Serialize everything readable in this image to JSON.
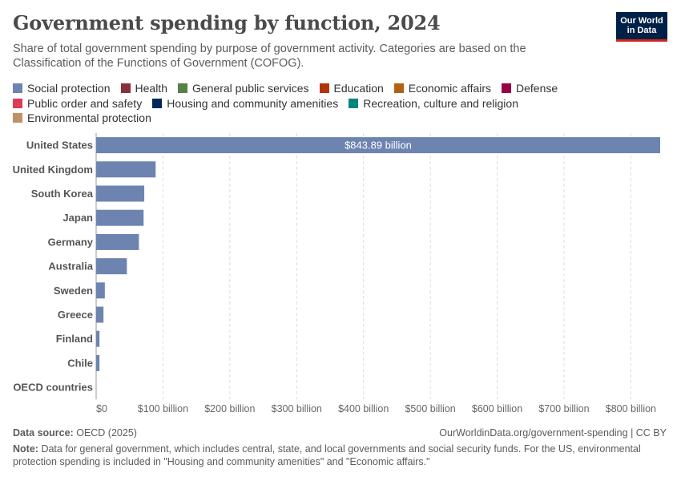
{
  "header": {
    "title": "Government spending by function, 2024",
    "subtitle": "Share of total government spending by purpose of government activity. Categories are based on the Classification of the Functions of Government (COFOG).",
    "logo_line1": "Our World",
    "logo_line2": "in Data"
  },
  "legend": [
    {
      "label": "Social protection",
      "color": "#6d84b0"
    },
    {
      "label": "Health",
      "color": "#883039"
    },
    {
      "label": "General public services",
      "color": "#578145"
    },
    {
      "label": "Education",
      "color": "#b13507"
    },
    {
      "label": "Economic affairs",
      "color": "#b16214"
    },
    {
      "label": "Defense",
      "color": "#970046"
    },
    {
      "label": "Public order and safety",
      "color": "#e03b56"
    },
    {
      "label": "Housing and community amenities",
      "color": "#00295b"
    },
    {
      "label": "Recreation, culture and religion",
      "color": "#00847e"
    },
    {
      "label": "Environmental protection",
      "color": "#c09066"
    }
  ],
  "chart_data": {
    "type": "bar",
    "orientation": "horizontal",
    "stacked": true,
    "categories": [
      "United States",
      "United Kingdom",
      "South Korea",
      "Japan",
      "Germany",
      "Australia",
      "Sweden",
      "Greece",
      "Finland",
      "Chile",
      "OECD countries"
    ],
    "series": [
      {
        "name": "Social protection",
        "color": "#6d84b0",
        "values": [
          843.89,
          89,
          72,
          71,
          64,
          46,
          13,
          11,
          5,
          5,
          0
        ]
      }
    ],
    "data_label": {
      "category": "United States",
      "text": "$843.89 billion"
    },
    "x_ticks": [
      0,
      100,
      200,
      300,
      400,
      500,
      600,
      700,
      800
    ],
    "x_tick_labels": [
      "$0",
      "$100 billion",
      "$200 billion",
      "$300 billion",
      "$400 billion",
      "$500 billion",
      "$600 billion",
      "$700 billion",
      "$800 billion"
    ],
    "xlim": [
      0,
      843.89
    ],
    "grid": "vertical-dashed",
    "legend_position": "top"
  },
  "footer": {
    "source_label": "Data source:",
    "source_text": "OECD (2025)",
    "url": "OurWorldinData.org/government-spending | CC BY",
    "note_label": "Note:",
    "note_text": "Data for general government, which includes central, state, and local governments and social security funds. For the US, environmental protection spending is included in \"Housing and community amenities\" and \"Economic affairs.\""
  }
}
